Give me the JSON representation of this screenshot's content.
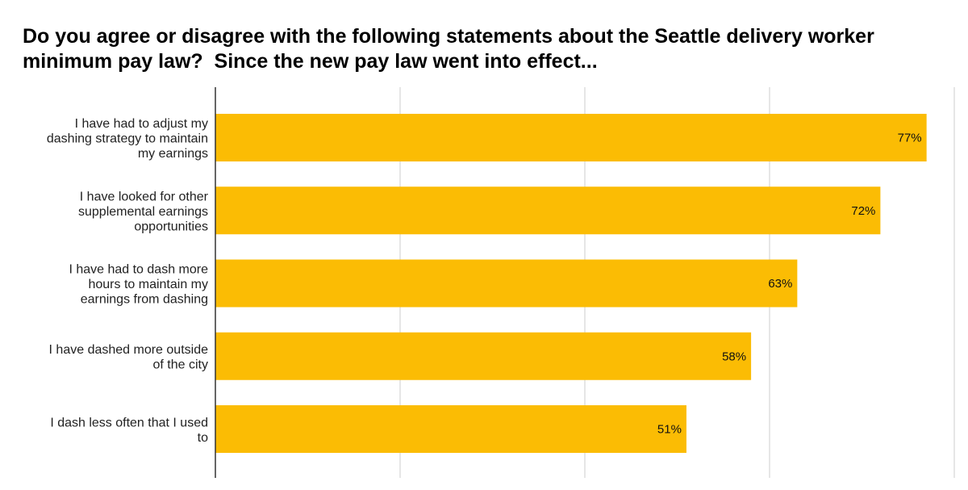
{
  "chart_data": {
    "type": "bar",
    "orientation": "horizontal",
    "title_lines": [
      "Do you agree or disagree with the following statements about the Seattle delivery worker",
      "minimum pay law?  Since the new pay law went into effect..."
    ],
    "categories": [
      [
        "I have had to adjust my",
        "dashing strategy to maintain",
        "my earnings"
      ],
      [
        "I have looked for other",
        "supplemental earnings",
        "opportunities"
      ],
      [
        "I have had to dash more",
        "hours to maintain my",
        "earnings from dashing"
      ],
      [
        "I have dashed more outside",
        "of the city"
      ],
      [
        "I dash less often that I used",
        "to"
      ]
    ],
    "values": [
      77,
      72,
      63,
      58,
      51
    ],
    "value_labels": [
      "77%",
      "72%",
      "63%",
      "58%",
      "51%"
    ],
    "xlim": [
      0,
      80
    ],
    "gridlines": [
      0,
      20,
      40,
      60,
      80
    ],
    "grid": true,
    "legend": "none",
    "bar_color": "#FBBC04"
  }
}
